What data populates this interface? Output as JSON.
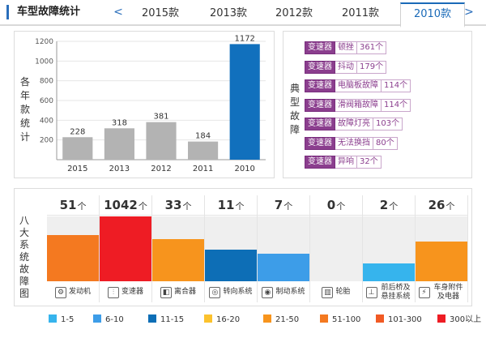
{
  "header": {
    "title": "车型故障统计",
    "prev_arrow": "<",
    "next_arrow": ">",
    "tabs": [
      "2015款",
      "2013款",
      "2012款",
      "2011款",
      "2010款"
    ],
    "active_tab": "2010款"
  },
  "year_panel": {
    "vertical_label": "各年款统计"
  },
  "faults_panel": {
    "vertical_label": "典型故障",
    "items": [
      {
        "category": "变速器",
        "name": "顿挫",
        "count": "361个"
      },
      {
        "category": "变速器",
        "name": "抖动",
        "count": "179个"
      },
      {
        "category": "变速器",
        "name": "电脑板故障",
        "count": "114个"
      },
      {
        "category": "变速器",
        "name": "滑阀箱故障",
        "count": "114个"
      },
      {
        "category": "变速器",
        "name": "故障灯亮",
        "count": "103个"
      },
      {
        "category": "变速器",
        "name": "无法换挡",
        "count": "80个"
      },
      {
        "category": "变速器",
        "name": "异响",
        "count": "32个"
      }
    ]
  },
  "systems_panel": {
    "vertical_label": "八大系统故障图",
    "unit": "个",
    "systems": [
      {
        "name": "发动机",
        "count": 51,
        "icon": "engine-icon",
        "glyph": "⚙",
        "color": "#f47920"
      },
      {
        "name": "变速器",
        "count": 1042,
        "icon": "gearshift-icon",
        "glyph": "⫶",
        "color": "#ee1c24"
      },
      {
        "name": "离合器",
        "count": 33,
        "icon": "clutch-icon",
        "glyph": "◧",
        "color": "#f7941d"
      },
      {
        "name": "转向系统",
        "count": 11,
        "icon": "steering-wheel-icon",
        "glyph": "◎",
        "color": "#0d6eb6"
      },
      {
        "name": "制动系统",
        "count": 7,
        "icon": "brake-icon",
        "glyph": "◉",
        "color": "#3d9de8"
      },
      {
        "name": "轮胎",
        "count": 0,
        "icon": "tire-icon",
        "glyph": "▥",
        "color": "#efefef"
      },
      {
        "name": "前后桥及悬挂系统",
        "count": 2,
        "icon": "suspension-icon",
        "glyph": "⊥",
        "color": "#36b4ed"
      },
      {
        "name": "车身附件及电器",
        "count": 26,
        "icon": "body-electric-icon",
        "glyph": "⚡",
        "color": "#f7941d"
      }
    ]
  },
  "legend": [
    {
      "label": "1-5",
      "color": "#36b4ed"
    },
    {
      "label": "6-10",
      "color": "#3d9de8"
    },
    {
      "label": "11-15",
      "color": "#0d6eb6"
    },
    {
      "label": "16-20",
      "color": "#fcc22d"
    },
    {
      "label": "21-50",
      "color": "#f7941d"
    },
    {
      "label": "51-100",
      "color": "#f47920"
    },
    {
      "label": "101-300",
      "color": "#f15a24"
    },
    {
      "label": "300以上",
      "color": "#ee1c24"
    }
  ],
  "chart_data": {
    "type": "bar",
    "categories": [
      "2015",
      "2013",
      "2012",
      "2011",
      "2010"
    ],
    "values": [
      228,
      318,
      381,
      184,
      1172
    ],
    "ylim": [
      0,
      1200
    ],
    "yticks": [
      200,
      400,
      600,
      800,
      1000,
      1200
    ],
    "highlight_category": "2010",
    "bar_color": "#b3b3b3",
    "highlight_color": "#1170bd",
    "grid": true
  }
}
